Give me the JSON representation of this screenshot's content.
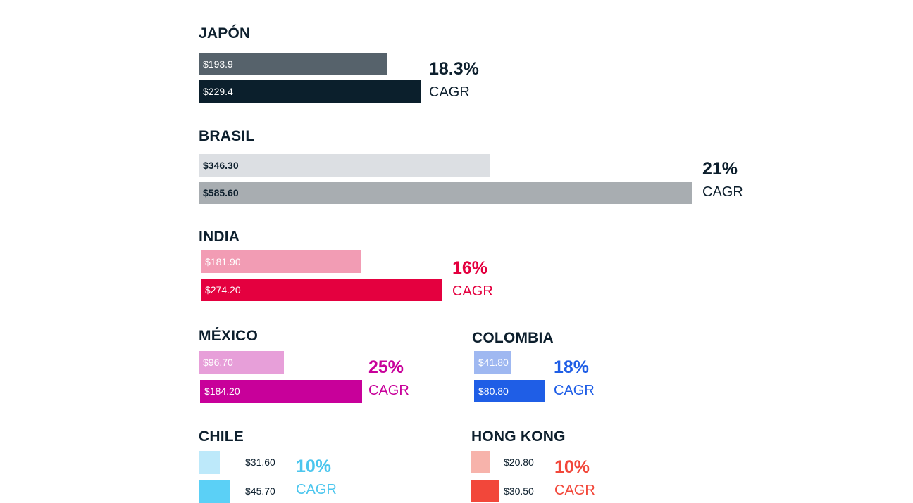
{
  "chart_data": [
    {
      "type": "bar",
      "title": "JAPÓN",
      "values": [
        193.9,
        229.4
      ],
      "labels": [
        "$193.9",
        "$229.4"
      ],
      "cagr": "18.3%",
      "cagr_label": "CAGR",
      "colors": [
        "#56626b",
        "#0b1f2c"
      ],
      "label_colors": [
        "#ffffff",
        "#ffffff"
      ],
      "cagr_color": "#0d1f2d",
      "cagr_label_color": "#0d1f2d"
    },
    {
      "type": "bar",
      "title": "BRASIL",
      "values": [
        346.3,
        585.6
      ],
      "labels": [
        "$346.30",
        "$585.60"
      ],
      "cagr": "21%",
      "cagr_label": "CAGR",
      "colors": [
        "#dcdfe3",
        "#a8adb1"
      ],
      "label_colors": [
        "#0d1f2d",
        "#0d1f2d"
      ],
      "cagr_color": "#0d1f2d",
      "cagr_label_color": "#0d1f2d"
    },
    {
      "type": "bar",
      "title": "INDIA",
      "values": [
        181.9,
        274.2
      ],
      "labels": [
        "$181.90",
        "$274.20"
      ],
      "cagr": "16%",
      "cagr_label": "CAGR",
      "colors": [
        "#f29cb4",
        "#e4003f"
      ],
      "label_colors": [
        "#ffffff",
        "#ffffff"
      ],
      "cagr_color": "#e4003f",
      "cagr_label_color": "#e4003f"
    },
    {
      "type": "bar",
      "title": "MÉXICO",
      "values": [
        96.7,
        184.2
      ],
      "labels": [
        "$96.70",
        "$184.20"
      ],
      "cagr": "25%",
      "cagr_label": "CAGR",
      "colors": [
        "#e79fd9",
        "#c8009a"
      ],
      "label_colors": [
        "#ffffff",
        "#ffffff"
      ],
      "cagr_color": "#c8009a",
      "cagr_label_color": "#c8009a"
    },
    {
      "type": "bar",
      "title": "COLOMBIA",
      "values": [
        41.8,
        80.8
      ],
      "labels": [
        "$41.80",
        "$80.80"
      ],
      "cagr": "18%",
      "cagr_label": "CAGR",
      "colors": [
        "#9fb8f1",
        "#1f5ee6"
      ],
      "label_colors": [
        "#ffffff",
        "#ffffff"
      ],
      "cagr_color": "#1f5ee6",
      "cagr_label_color": "#1f5ee6"
    },
    {
      "type": "bar",
      "title": "CHILE",
      "values": [
        31.6,
        45.7
      ],
      "labels": [
        "$31.60",
        "$45.70"
      ],
      "cagr": "10%",
      "cagr_label": "CAGR",
      "colors": [
        "#bde9fa",
        "#5bd0f6"
      ],
      "label_colors": [
        "#0d1f2d",
        "#0d1f2d"
      ],
      "cagr_color": "#4cc6ee",
      "cagr_label_color": "#4cc6ee"
    },
    {
      "type": "bar",
      "title": "HONG KONG",
      "values": [
        20.8,
        30.5
      ],
      "labels": [
        "$20.80",
        "$30.50"
      ],
      "cagr": "10%",
      "cagr_label": "CAGR",
      "colors": [
        "#f7b3ab",
        "#f2473a"
      ],
      "label_colors": [
        "#0d1f2d",
        "#0d1f2d"
      ],
      "cagr_color": "#f2473a",
      "cagr_label_color": "#f2473a"
    }
  ]
}
